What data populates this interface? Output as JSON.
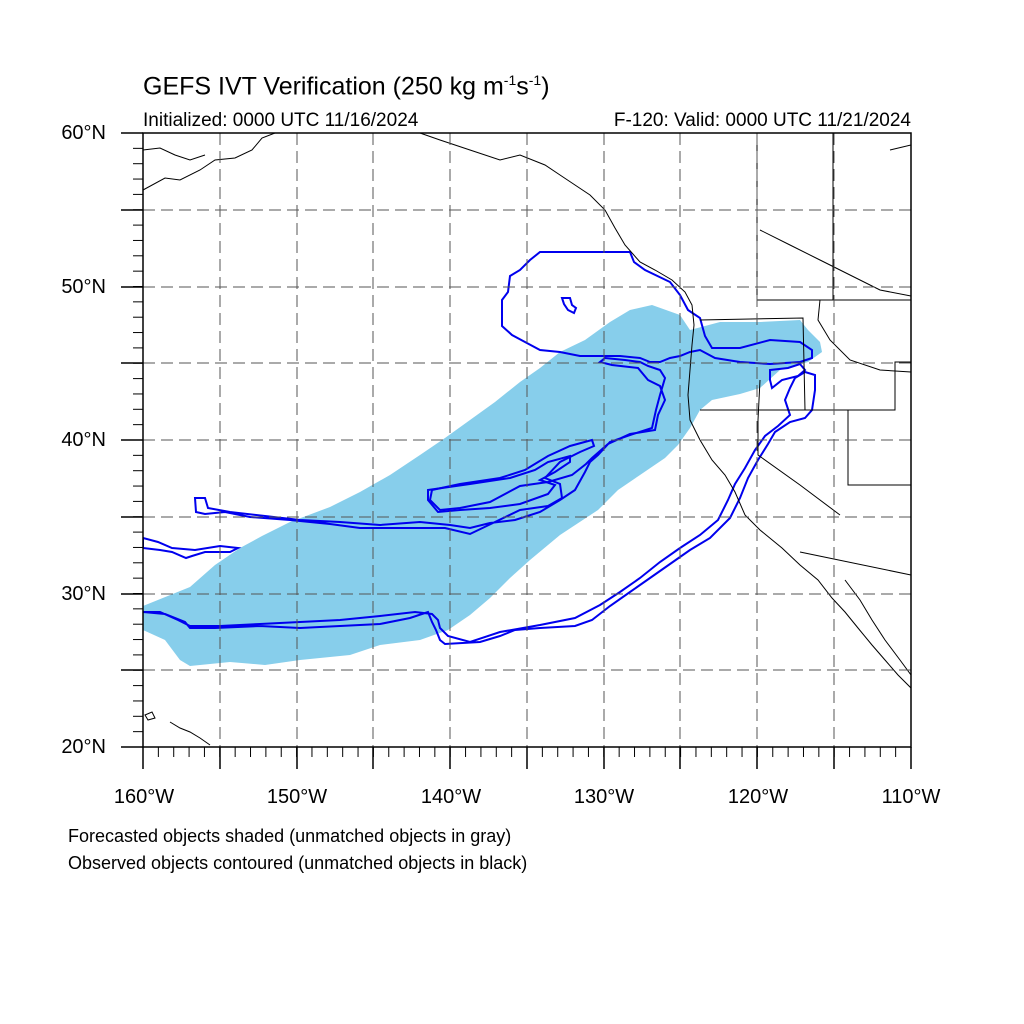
{
  "title": {
    "text": "GEFS IVT Verification (250 kg m",
    "exp1": "-1",
    "mid": "s",
    "exp2": "-1",
    "end": ")"
  },
  "initialized": "Initialized: 0000 UTC 11/16/2024",
  "valid": "F-120: Valid: 0000 UTC 11/21/2024",
  "lat_labels": [
    "60°N",
    "50°N",
    "40°N",
    "30°N",
    "20°N"
  ],
  "lon_labels": [
    "160°W",
    "150°W",
    "140°W",
    "130°W",
    "120°W",
    "110°W"
  ],
  "notes": {
    "forecast": "Forecasted objects shaded (unmatched objects in gray)",
    "observed": "Observed objects contoured (unmatched objects in black)"
  },
  "colors": {
    "forecast_fill": "#87ceeb",
    "observed_contour": "#0000ee",
    "coastline": "#000000",
    "grid": "#555555"
  }
}
